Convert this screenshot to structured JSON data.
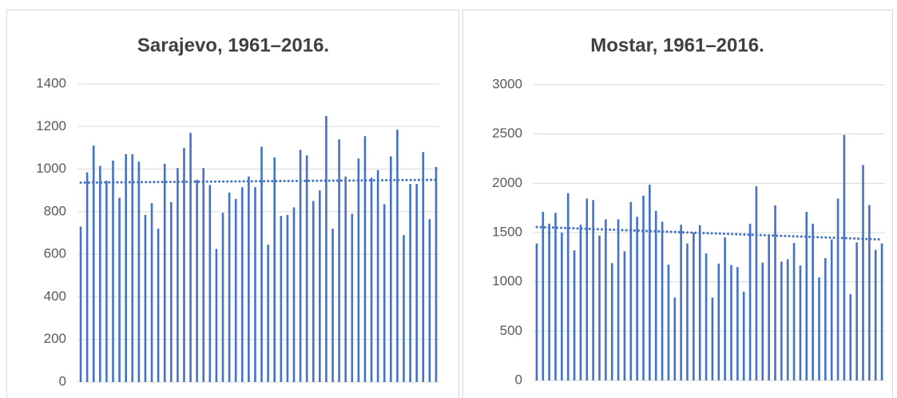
{
  "chart_data": [
    {
      "type": "bar",
      "title": "Sarajevo, 1961–2016.",
      "color": "#4472c4",
      "trendline": true,
      "grid": true,
      "values": [
        730,
        985,
        1110,
        1015,
        945,
        1040,
        865,
        1070,
        1070,
        1035,
        785,
        840,
        720,
        1025,
        845,
        1005,
        1100,
        1170,
        950,
        1005,
        925,
        625,
        795,
        890,
        860,
        915,
        965,
        915,
        1105,
        645,
        1055,
        780,
        785,
        820,
        1090,
        1065,
        850,
        900,
        1250,
        720,
        1140,
        965,
        790,
        1050,
        1155,
        960,
        995,
        835,
        1060,
        1185,
        690,
        930,
        930,
        1080,
        765,
        1010
      ],
      "ylim": [
        0,
        1400
      ],
      "yticks": [
        0,
        200,
        400,
        600,
        800,
        1000,
        1200,
        1400
      ]
    },
    {
      "type": "bar",
      "title": "Mostar, 1961–2016.",
      "color": "#4472c4",
      "trendline": true,
      "grid": true,
      "values": [
        1390,
        1710,
        1590,
        1700,
        1500,
        1900,
        1320,
        1580,
        1845,
        1830,
        1470,
        1635,
        1190,
        1635,
        1310,
        1810,
        1660,
        1875,
        1985,
        1720,
        1610,
        1175,
        840,
        1580,
        1390,
        1500,
        1575,
        1290,
        840,
        1185,
        1450,
        1170,
        1150,
        900,
        1590,
        1970,
        1195,
        1480,
        1775,
        1205,
        1230,
        1395,
        1165,
        1710,
        1590,
        1045,
        1240,
        1430,
        1845,
        2490,
        875,
        1400,
        2185,
        1780,
        1325,
        1390
      ],
      "ylim": [
        0,
        3000
      ],
      "yticks": [
        0,
        500,
        1000,
        1500,
        2000,
        2500,
        3000
      ]
    }
  ]
}
